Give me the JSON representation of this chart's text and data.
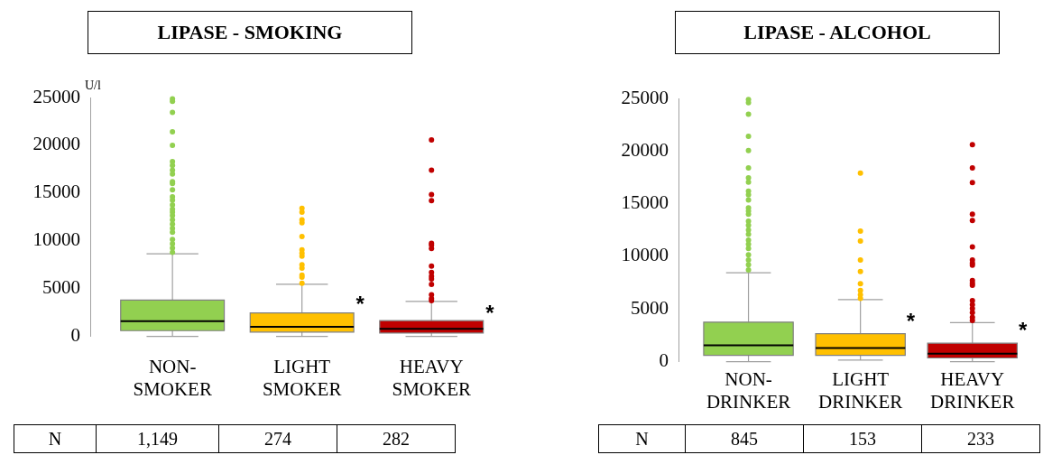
{
  "chart_data": [
    {
      "type": "box",
      "title": "LIPASE - SMOKING",
      "ylabel": "U/l",
      "categories": [
        "NON-SMOKER",
        "LIGHT SMOKER",
        "HEAVY SMOKER"
      ],
      "colors": [
        "#92d050",
        "#ffc000",
        "#c00000"
      ],
      "ylim": [
        0,
        25000
      ],
      "yticks": [
        0,
        5000,
        10000,
        15000,
        20000,
        25000
      ],
      "boxes": [
        {
          "low": 0,
          "q1": 600,
          "median": 1600,
          "q3": 3800,
          "high": 8650,
          "outliers": [
            24850,
            24600,
            23450,
            21400,
            20000,
            18300,
            17900,
            17400,
            17000,
            16200,
            16000,
            15350,
            14600,
            14250,
            13750,
            13300,
            13000,
            12650,
            12200,
            11750,
            11300,
            10900,
            10150,
            9700,
            9250,
            8800
          ]
        },
        {
          "low": 0,
          "q1": 450,
          "median": 1000,
          "q3": 2450,
          "high": 5450,
          "outliers": [
            13400,
            13000,
            12200,
            11900,
            10450,
            9050,
            8700,
            8400,
            7500,
            7150,
            6400,
            6200,
            5550
          ]
        },
        {
          "low": 0,
          "q1": 350,
          "median": 800,
          "q3": 1650,
          "high": 3650,
          "outliers": [
            20550,
            17400,
            14850,
            14200,
            9750,
            9550,
            9200,
            7350,
            6700,
            6300,
            6000,
            5450,
            4350,
            3950,
            3750
          ]
        }
      ],
      "annotations": [
        {
          "text": "*",
          "x": "LIGHT SMOKER",
          "y": 3800
        },
        {
          "text": "*",
          "x": "HEAVY SMOKER",
          "y": 2900
        },
        "N",
        "1,149",
        "274",
        "282"
      ]
    },
    {
      "type": "box",
      "title": "LIPASE - ALCOHOL",
      "categories": [
        "NON-DRINKER",
        "LIGHT DRINKER",
        "HEAVY DRINKER"
      ],
      "colors": [
        "#92d050",
        "#ffc000",
        "#c00000"
      ],
      "ylim": [
        0,
        25000
      ],
      "yticks": [
        0,
        5000,
        10000,
        15000,
        20000,
        25000
      ],
      "boxes": [
        {
          "low": 0,
          "q1": 600,
          "median": 1550,
          "q3": 3750,
          "high": 8450,
          "outliers": [
            24900,
            24600,
            23500,
            21400,
            20050,
            18400,
            17450,
            17050,
            16200,
            15850,
            15350,
            14600,
            14300,
            14000,
            13350,
            12950,
            12500,
            12100,
            11550,
            11150,
            10750,
            10150,
            9650,
            9200,
            8700
          ]
        },
        {
          "low": 150,
          "q1": 600,
          "median": 1300,
          "q3": 2650,
          "high": 5900,
          "outliers": [
            17900,
            12400,
            11450,
            9650,
            8550,
            7400,
            6750,
            6350,
            6000
          ]
        },
        {
          "low": 0,
          "q1": 350,
          "median": 750,
          "q3": 1750,
          "high": 3700,
          "outliers": [
            20600,
            18400,
            17000,
            14000,
            13400,
            10900,
            9650,
            9350,
            9150,
            7700,
            7450,
            7250,
            5800,
            5400,
            5050,
            4650,
            4200,
            3900
          ]
        }
      ],
      "annotations": [
        {
          "text": "*",
          "x": "LIGHT DRINKER",
          "y": 4200
        },
        {
          "text": "*",
          "x": "HEAVY DRINKER",
          "y": 3350
        },
        "N",
        "845",
        "153",
        "233"
      ]
    }
  ]
}
